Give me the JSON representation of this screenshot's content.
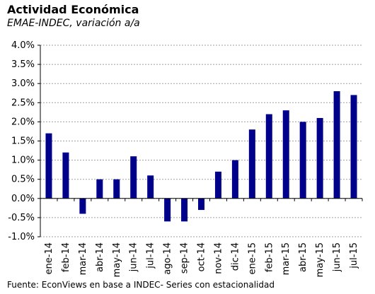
{
  "title": "Actividad Económica",
  "subtitle": "EMAE-INDEC, variación a/a",
  "source": "Fuente: EconViews en base a INDEC- Series con estacionalidad",
  "chart_data": {
    "type": "bar",
    "categories": [
      "ene-14",
      "feb-14",
      "mar-14",
      "abr-14",
      "may-14",
      "jun-14",
      "jul-14",
      "ago-14",
      "sep-14",
      "oct-14",
      "nov-14",
      "dic-14",
      "ene-15",
      "feb-15",
      "mar-15",
      "abr-15",
      "may-15",
      "jun-15",
      "jul-15"
    ],
    "values": [
      1.7,
      1.2,
      -0.4,
      0.5,
      0.5,
      1.1,
      0.6,
      -0.6,
      -0.6,
      -0.3,
      0.7,
      1.0,
      1.8,
      2.2,
      2.3,
      2.0,
      2.1,
      2.8,
      2.7
    ],
    "ylim": [
      -1.0,
      4.0
    ],
    "yticks": [
      4.0,
      3.5,
      3.0,
      2.5,
      2.0,
      1.5,
      1.0,
      0.5,
      0.0,
      -0.5,
      -1.0
    ],
    "ytick_labels": [
      "4.0%",
      "3.5%",
      "3.0%",
      "2.5%",
      "2.0%",
      "1.5%",
      "1.0%",
      "0.5%",
      "0.0%",
      "-0.5%",
      "-1.0%"
    ],
    "grid": true,
    "bar_color": "#00008B",
    "grid_color": "#a0a0a0"
  }
}
